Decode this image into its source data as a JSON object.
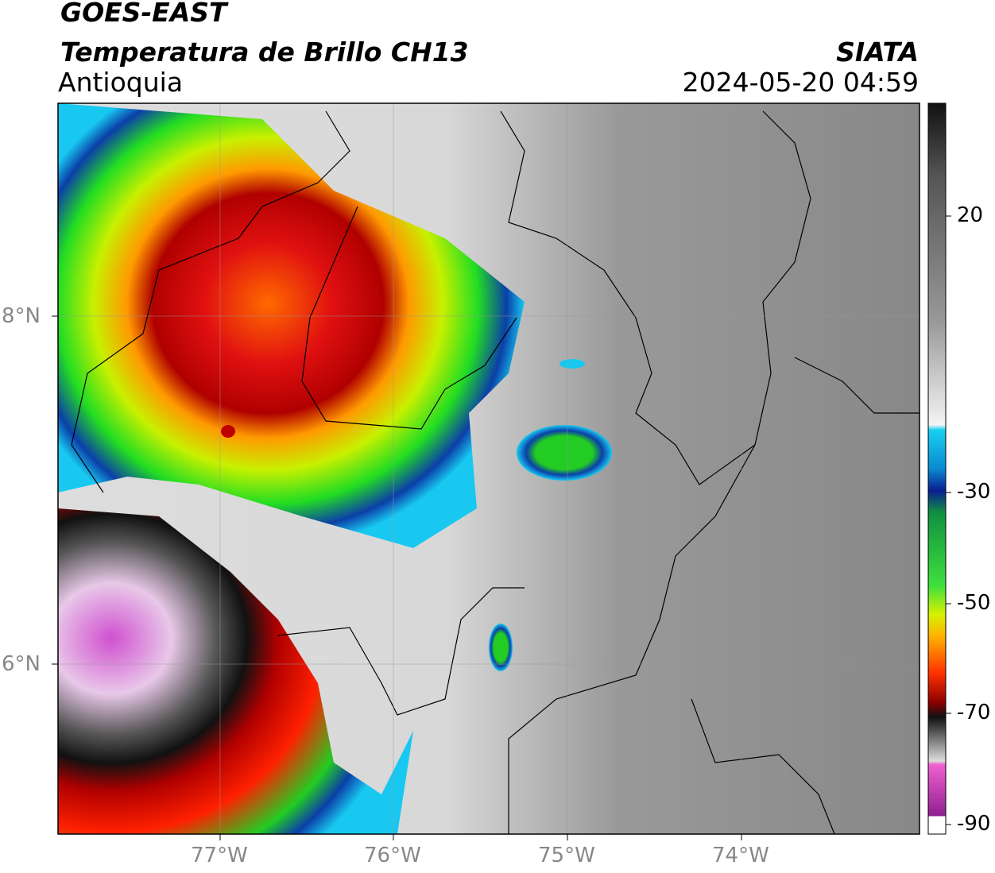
{
  "header": {
    "satellite": "GOES-EAST",
    "product": "Temperatura de Brillo CH13",
    "region": "Antioquia",
    "source": "SIATA",
    "datetime": "2024-05-20 04:59"
  },
  "map": {
    "lat_ticks": [
      "8°N",
      "6°N"
    ],
    "lon_ticks": [
      "77°W",
      "76°W",
      "75°W",
      "74°W"
    ]
  },
  "colorbar": {
    "ticks": [
      20,
      -30,
      -50,
      -70,
      -90
    ]
  }
}
